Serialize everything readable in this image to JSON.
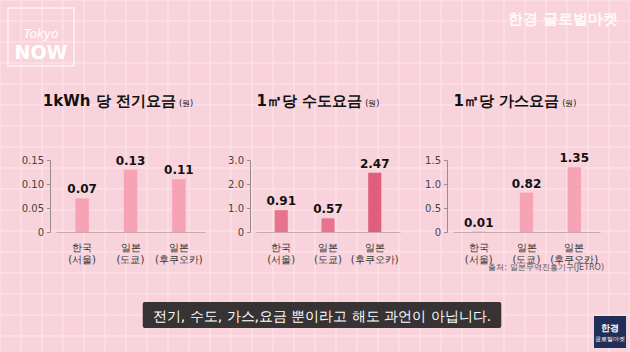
{
  "chart_data": [
    {
      "type": "bar",
      "title": "1kWh 당 전기요금",
      "subtitle": "(원)",
      "categories": [
        "한국\n(서울)",
        "일본\n(도쿄)",
        "일본\n(후쿠오카)"
      ],
      "values": [
        0.07,
        0.13,
        0.11
      ],
      "colors": [
        "#f7a3b6",
        "#f7a3b6",
        "#f7a3b6"
      ],
      "ylim": [
        0,
        0.15
      ],
      "yticks": [
        0,
        0.05,
        {
          "value": 0.1,
          "label": "0.10"
        },
        0.15
      ],
      "data_labels": true,
      "grid": false
    },
    {
      "type": "bar",
      "title": "1㎥당 수도요금",
      "subtitle": "(원)",
      "categories": [
        "한국\n(서울)",
        "일본\n(도쿄)",
        "일본\n(후쿠오카)"
      ],
      "values": [
        0.91,
        0.57,
        2.47
      ],
      "colors": [
        "#e8738e",
        "#e8738e",
        "#df5f7d"
      ],
      "ylim": [
        0,
        3
      ],
      "yticks": [
        0,
        {
          "value": 1,
          "label": "1.0"
        },
        {
          "value": 2,
          "label": "2.0"
        },
        {
          "value": 3,
          "label": "3.0"
        }
      ],
      "data_labels": true,
      "grid": false
    },
    {
      "type": "bar",
      "title": "1㎥당 가스요금",
      "subtitle": "(원)",
      "categories": [
        "한국\n(서울)",
        "일본\n(도쿄)",
        "일본\n(후쿠오카)"
      ],
      "values": [
        0.01,
        0.82,
        1.35
      ],
      "colors": [
        "#f7a3b6",
        "#f7a3b6",
        "#f7a3b6"
      ],
      "ylim": [
        0,
        1.5
      ],
      "yticks": [
        0,
        0.5,
        {
          "value": 1,
          "label": "1.0"
        },
        1.5
      ],
      "annotation": "출처: 일본무역진흥기구(JETRO)",
      "data_labels": true,
      "grid": false
    }
  ],
  "page": {
    "logo": [
      "Tokyo",
      "NOW"
    ],
    "brand": "한경 글로벌마켓",
    "caption": "전기, 수도, 가스,요금 뿐이라고 해도 과언이 아닙니다.",
    "badge": [
      "한경",
      "글로벌마켓"
    ]
  }
}
